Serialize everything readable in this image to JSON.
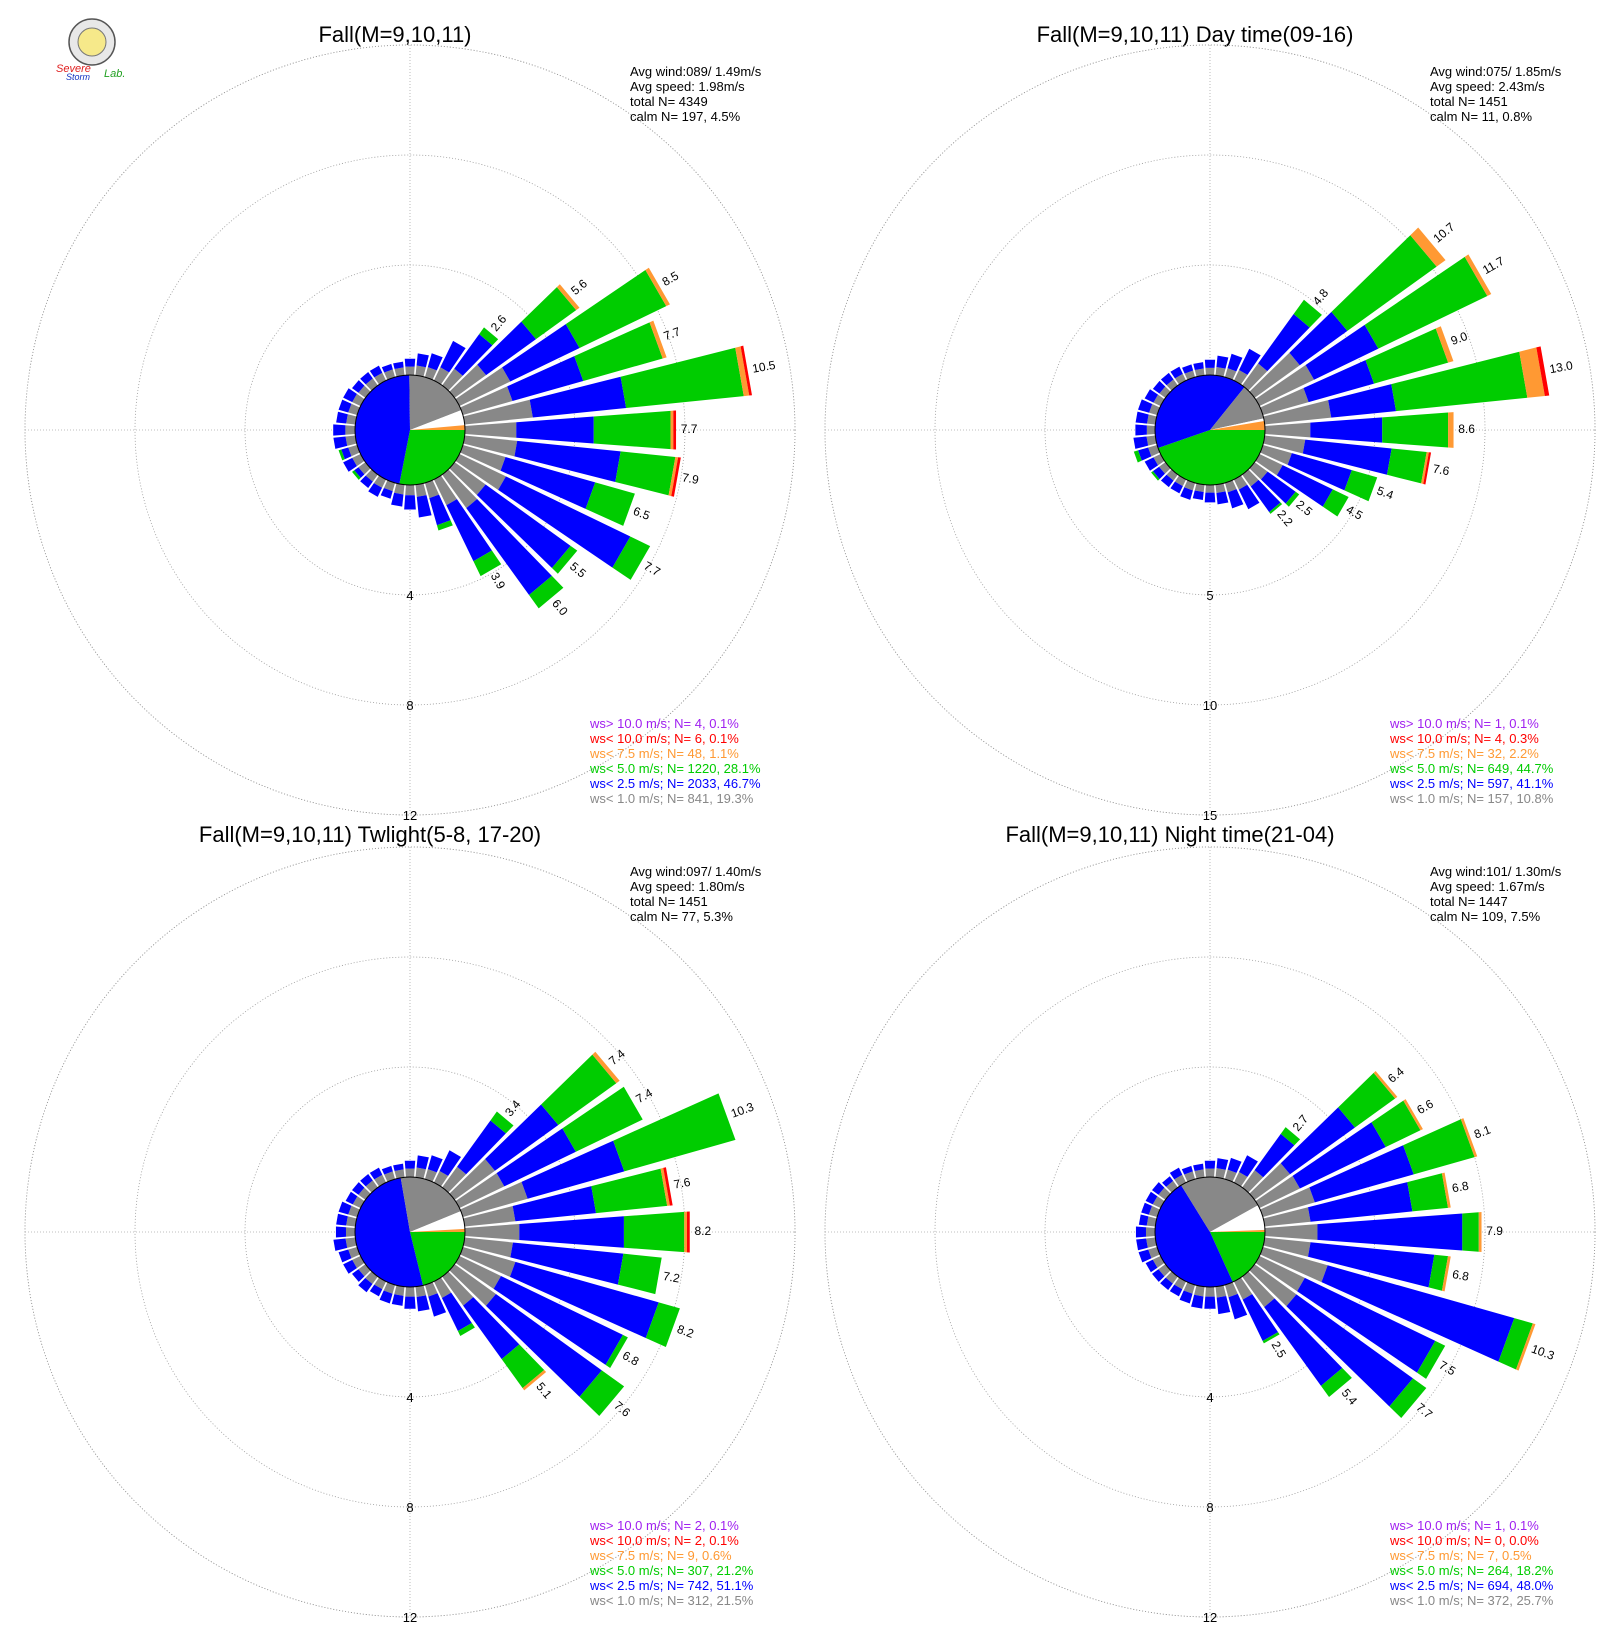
{
  "logo": {
    "text1": "Severe",
    "text2": "Storm",
    "text3": "Lab."
  },
  "colors": {
    "gt10": "#a020f0",
    "lt10": "#ff0000",
    "lt7_5": "#ff9933",
    "lt5": "#00cc00",
    "lt2_5": "#0000ff",
    "lt1": "#888888",
    "calm": "#ffffff"
  },
  "chart_data": [
    {
      "type": "polar-bar",
      "title": "Fall(M=9,10,11)",
      "stats": [
        "Avg wind:089/ 1.49m/s",
        "Avg speed: 1.98m/s",
        "total N=      4349",
        "calm N=    197,   4.5%"
      ],
      "ring_labels": [
        "4",
        "8",
        "12"
      ],
      "rmax": 12,
      "center_pie": {
        "blue": 46.7,
        "green": 28.1,
        "gray": 19.3,
        "calm": 4.5,
        "other": 1.4
      },
      "rose": [
        {
          "dir": 0,
          "total": 0.6
        },
        {
          "dir": 10,
          "total": 0.8
        },
        {
          "dir": 20,
          "total": 0.9
        },
        {
          "dir": 30,
          "total": 1.6
        },
        {
          "dir": 40,
          "total": 2.6,
          "label": "2.6",
          "g": 0.3
        },
        {
          "dir": 50,
          "total": 5.6,
          "label": "5.6",
          "g": 1.8,
          "o": 0.15
        },
        {
          "dir": 60,
          "total": 8.5,
          "label": "8.5",
          "g": 3.5,
          "o": 0.15
        },
        {
          "dir": 70,
          "total": 7.7,
          "label": "7.7",
          "g": 3.0,
          "o": 0.15
        },
        {
          "dir": 80,
          "total": 10.5,
          "label": "10.5",
          "g": 4.3,
          "o": 0.2,
          "r": 0.1
        },
        {
          "dir": 90,
          "total": 7.7,
          "label": "7.7",
          "g": 2.8,
          "o": 0.1,
          "r": 0.1
        },
        {
          "dir": 100,
          "total": 7.9,
          "label": "7.9",
          "g": 2.0,
          "o": 0.1,
          "r": 0.1
        },
        {
          "dir": 110,
          "total": 6.5,
          "label": "6.5",
          "g": 1.5
        },
        {
          "dir": 120,
          "total": 7.7,
          "label": "7.7",
          "g": 0.8
        },
        {
          "dir": 130,
          "total": 5.5,
          "label": "5.5",
          "g": 0.3
        },
        {
          "dir": 140,
          "total": 6.0,
          "label": "6.0",
          "g": 0.6
        },
        {
          "dir": 150,
          "total": 3.9,
          "label": "3.9",
          "g": 0.6
        },
        {
          "dir": 160,
          "total": 1.8,
          "g": 0.2
        },
        {
          "dir": 170,
          "total": 1.2
        },
        {
          "dir": 180,
          "total": 0.9
        },
        {
          "dir": 190,
          "total": 0.8
        },
        {
          "dir": 200,
          "total": 0.6
        },
        {
          "dir": 210,
          "total": 0.7
        },
        {
          "dir": 220,
          "total": 0.6
        },
        {
          "dir": 230,
          "total": 0.6,
          "g": 0.1
        },
        {
          "dir": 240,
          "total": 0.7
        },
        {
          "dir": 250,
          "total": 0.7,
          "g": 0.1
        },
        {
          "dir": 260,
          "total": 0.8
        },
        {
          "dir": 270,
          "total": 0.8
        },
        {
          "dir": 280,
          "total": 0.7
        },
        {
          "dir": 290,
          "total": 0.7
        },
        {
          "dir": 300,
          "total": 0.7
        },
        {
          "dir": 310,
          "total": 0.6
        },
        {
          "dir": 320,
          "total": 0.6
        },
        {
          "dir": 330,
          "total": 0.6
        },
        {
          "dir": 340,
          "total": 0.5
        },
        {
          "dir": 350,
          "total": 0.5
        }
      ],
      "legend": [
        {
          "text": "ws> 10.0 m/s; N=     4,  0.1%",
          "color": "#a020f0"
        },
        {
          "text": "ws< 10.0 m/s; N=     6,  0.1%",
          "color": "#ff0000"
        },
        {
          "text": "ws<  7.5 m/s; N=    48,  1.1%",
          "color": "#ff9933"
        },
        {
          "text": "ws<  5.0 m/s; N=  1220, 28.1%",
          "color": "#00cc00"
        },
        {
          "text": "ws<  2.5 m/s; N=  2033, 46.7%",
          "color": "#0000ff"
        },
        {
          "text": "ws<  1.0 m/s; N=   841, 19.3%",
          "color": "#888888"
        }
      ]
    },
    {
      "type": "polar-bar",
      "title": "Fall(M=9,10,11) Day time(09-16)",
      "stats": [
        "Avg wind:075/ 1.85m/s",
        "Avg speed: 2.43m/s",
        "total N=      1451",
        "calm N=     11,   0.8%"
      ],
      "ring_labels": [
        "5",
        "10",
        "15"
      ],
      "rmax": 15,
      "center_pie": {
        "blue": 41.1,
        "green": 44.7,
        "gray": 10.8,
        "calm": 0.8,
        "other": 2.6
      },
      "rose": [
        {
          "dir": 0,
          "total": 0.7
        },
        {
          "dir": 10,
          "total": 0.9
        },
        {
          "dir": 20,
          "total": 1.1
        },
        {
          "dir": 30,
          "total": 1.6
        },
        {
          "dir": 40,
          "total": 4.8,
          "label": "4.8",
          "g": 0.8
        },
        {
          "dir": 50,
          "total": 10.7,
          "label": "10.7",
          "g": 5.0,
          "o": 0.5
        },
        {
          "dir": 60,
          "total": 11.7,
          "label": "11.7",
          "g": 5.5,
          "o": 0.2
        },
        {
          "dir": 70,
          "total": 9.0,
          "label": "9.0",
          "g": 3.5,
          "o": 0.25
        },
        {
          "dir": 80,
          "total": 13.0,
          "label": "13.0",
          "g": 6.0,
          "o": 0.8,
          "r": 0.2
        },
        {
          "dir": 90,
          "total": 8.6,
          "label": "8.6",
          "g": 3.0,
          "o": 0.25
        },
        {
          "dir": 100,
          "total": 7.6,
          "label": "7.6",
          "g": 1.6,
          "o": 0.1,
          "r": 0.1
        },
        {
          "dir": 110,
          "total": 5.4,
          "label": "5.4",
          "g": 1.2
        },
        {
          "dir": 120,
          "total": 4.5,
          "label": "4.5",
          "g": 0.8
        },
        {
          "dir": 130,
          "total": 2.5,
          "label": "2.5",
          "g": 0.2
        },
        {
          "dir": 140,
          "total": 2.2,
          "label": "2.2",
          "g": 0.1
        },
        {
          "dir": 150,
          "total": 1.5
        },
        {
          "dir": 160,
          "total": 1.2
        },
        {
          "dir": 170,
          "total": 0.9
        },
        {
          "dir": 180,
          "total": 0.8
        },
        {
          "dir": 190,
          "total": 0.7
        },
        {
          "dir": 200,
          "total": 0.8
        },
        {
          "dir": 210,
          "total": 0.7
        },
        {
          "dir": 220,
          "total": 0.7
        },
        {
          "dir": 230,
          "total": 0.8,
          "g": 0.1
        },
        {
          "dir": 240,
          "total": 0.8
        },
        {
          "dir": 250,
          "total": 1.1,
          "g": 0.2
        },
        {
          "dir": 260,
          "total": 1.0
        },
        {
          "dir": 270,
          "total": 0.9
        },
        {
          "dir": 280,
          "total": 0.9
        },
        {
          "dir": 290,
          "total": 0.9
        },
        {
          "dir": 300,
          "total": 0.8
        },
        {
          "dir": 310,
          "total": 0.7
        },
        {
          "dir": 320,
          "total": 0.7
        },
        {
          "dir": 330,
          "total": 0.7
        },
        {
          "dir": 340,
          "total": 0.6
        },
        {
          "dir": 350,
          "total": 0.6
        }
      ],
      "legend": [
        {
          "text": "ws> 10.0 m/s; N=     1,  0.1%",
          "color": "#a020f0"
        },
        {
          "text": "ws< 10.0 m/s; N=     4,  0.3%",
          "color": "#ff0000"
        },
        {
          "text": "ws<  7.5 m/s; N=    32,  2.2%",
          "color": "#ff9933"
        },
        {
          "text": "ws<  5.0 m/s; N=   649, 44.7%",
          "color": "#00cc00"
        },
        {
          "text": "ws<  2.5 m/s; N=   597, 41.1%",
          "color": "#0000ff"
        },
        {
          "text": "ws<  1.0 m/s; N=   157, 10.8%",
          "color": "#888888"
        }
      ]
    },
    {
      "type": "polar-bar",
      "title": "Fall(M=9,10,11) Twlight(5-8, 17-20)",
      "stats": [
        "Avg wind:097/ 1.40m/s",
        "Avg speed: 1.80m/s",
        "total N=      1451",
        "calm N=     77,   5.3%"
      ],
      "ring_labels": [
        "4",
        "8",
        "12"
      ],
      "rmax": 12,
      "center_pie": {
        "blue": 51.1,
        "green": 21.2,
        "gray": 21.5,
        "calm": 5.3,
        "other": 0.9
      },
      "rose": [
        {
          "dir": 0,
          "total": 0.6
        },
        {
          "dir": 10,
          "total": 0.8
        },
        {
          "dir": 20,
          "total": 0.9
        },
        {
          "dir": 30,
          "total": 1.3
        },
        {
          "dir": 40,
          "total": 3.4,
          "label": "3.4",
          "g": 0.4
        },
        {
          "dir": 50,
          "total": 7.4,
          "label": "7.4",
          "g": 2.6,
          "o": 0.15
        },
        {
          "dir": 60,
          "total": 7.4,
          "label": "7.4",
          "g": 2.7
        },
        {
          "dir": 70,
          "total": 10.3,
          "label": "10.3",
          "g": 4.2
        },
        {
          "dir": 80,
          "total": 7.6,
          "label": "7.6",
          "g": 2.6,
          "o": 0.1,
          "r": 0.1
        },
        {
          "dir": 90,
          "total": 8.2,
          "label": "8.2",
          "g": 2.2,
          "o": 0.1,
          "r": 0.1
        },
        {
          "dir": 100,
          "total": 7.2,
          "label": "7.2",
          "g": 1.4
        },
        {
          "dir": 110,
          "total": 8.2,
          "label": "8.2",
          "g": 0.8
        },
        {
          "dir": 120,
          "total": 6.8,
          "label": "6.8",
          "g": 0.2
        },
        {
          "dir": 130,
          "total": 7.6,
          "label": "7.6",
          "g": 1.0
        },
        {
          "dir": 140,
          "total": 5.1,
          "label": "5.1",
          "g": 1.3,
          "o": 0.1
        },
        {
          "dir": 150,
          "total": 2.2,
          "g": 0.2
        },
        {
          "dir": 160,
          "total": 1.2
        },
        {
          "dir": 170,
          "total": 0.9
        },
        {
          "dir": 180,
          "total": 0.8
        },
        {
          "dir": 190,
          "total": 0.7
        },
        {
          "dir": 200,
          "total": 0.7
        },
        {
          "dir": 210,
          "total": 0.6
        },
        {
          "dir": 220,
          "total": 0.7
        },
        {
          "dir": 230,
          "total": 0.6
        },
        {
          "dir": 240,
          "total": 0.7
        },
        {
          "dir": 250,
          "total": 0.7
        },
        {
          "dir": 260,
          "total": 0.8
        },
        {
          "dir": 270,
          "total": 0.7
        },
        {
          "dir": 280,
          "total": 0.7
        },
        {
          "dir": 290,
          "total": 0.7
        },
        {
          "dir": 300,
          "total": 0.6
        },
        {
          "dir": 310,
          "total": 0.6
        },
        {
          "dir": 320,
          "total": 0.6
        },
        {
          "dir": 330,
          "total": 0.6
        },
        {
          "dir": 340,
          "total": 0.5
        },
        {
          "dir": 350,
          "total": 0.5
        }
      ],
      "legend": [
        {
          "text": "ws> 10.0 m/s; N=     2,  0.1%",
          "color": "#a020f0"
        },
        {
          "text": "ws< 10.0 m/s; N=     2,  0.1%",
          "color": "#ff0000"
        },
        {
          "text": "ws<  7.5 m/s; N=     9,  0.6%",
          "color": "#ff9933"
        },
        {
          "text": "ws<  5.0 m/s; N=   307, 21.2%",
          "color": "#00cc00"
        },
        {
          "text": "ws<  2.5 m/s; N=   742, 51.1%",
          "color": "#0000ff"
        },
        {
          "text": "ws<  1.0 m/s; N=   312, 21.5%",
          "color": "#888888"
        }
      ]
    },
    {
      "type": "polar-bar",
      "title": "Fall(M=9,10,11) Night time(21-04)",
      "stats": [
        "Avg wind:101/ 1.30m/s",
        "Avg speed: 1.67m/s",
        "total N=      1447",
        "calm N=    109,   7.5%"
      ],
      "ring_labels": [
        "4",
        "8",
        "12"
      ],
      "rmax": 12,
      "center_pie": {
        "blue": 48.0,
        "green": 18.2,
        "gray": 25.7,
        "calm": 7.5,
        "other": 0.6
      },
      "rose": [
        {
          "dir": 0,
          "total": 0.6
        },
        {
          "dir": 10,
          "total": 0.7
        },
        {
          "dir": 20,
          "total": 0.8
        },
        {
          "dir": 30,
          "total": 1.1
        },
        {
          "dir": 40,
          "total": 2.7,
          "label": "2.7",
          "g": 0.3
        },
        {
          "dir": 50,
          "total": 6.4,
          "label": "6.4",
          "g": 1.8,
          "o": 0.1
        },
        {
          "dir": 60,
          "total": 6.6,
          "label": "6.6",
          "g": 1.4,
          "o": 0.1
        },
        {
          "dir": 70,
          "total": 8.1,
          "label": "8.1",
          "g": 2.3,
          "o": 0.1
        },
        {
          "dir": 80,
          "total": 6.8,
          "label": "6.8",
          "g": 1.3,
          "o": 0.1
        },
        {
          "dir": 90,
          "total": 7.9,
          "label": "7.9",
          "g": 0.6,
          "o": 0.1
        },
        {
          "dir": 100,
          "total": 6.8,
          "label": "6.8",
          "g": 0.5,
          "o": 0.1
        },
        {
          "dir": 110,
          "total": 10.3,
          "label": "10.3",
          "g": 0.7,
          "o": 0.1
        },
        {
          "dir": 120,
          "total": 7.5,
          "label": "7.5",
          "g": 0.4
        },
        {
          "dir": 130,
          "total": 7.7,
          "label": "7.7",
          "g": 0.6
        },
        {
          "dir": 140,
          "total": 5.4,
          "label": "5.4",
          "g": 0.5
        },
        {
          "dir": 150,
          "total": 2.5,
          "label": "2.5",
          "g": 0.1
        },
        {
          "dir": 160,
          "total": 1.3
        },
        {
          "dir": 170,
          "total": 1.0
        },
        {
          "dir": 180,
          "total": 0.8
        },
        {
          "dir": 190,
          "total": 0.8
        },
        {
          "dir": 200,
          "total": 0.7
        },
        {
          "dir": 210,
          "total": 0.6
        },
        {
          "dir": 220,
          "total": 0.6
        },
        {
          "dir": 230,
          "total": 0.6
        },
        {
          "dir": 240,
          "total": 0.6
        },
        {
          "dir": 250,
          "total": 0.7
        },
        {
          "dir": 260,
          "total": 0.7
        },
        {
          "dir": 270,
          "total": 0.7
        },
        {
          "dir": 280,
          "total": 0.6
        },
        {
          "dir": 290,
          "total": 0.6
        },
        {
          "dir": 300,
          "total": 0.6
        },
        {
          "dir": 310,
          "total": 0.6
        },
        {
          "dir": 320,
          "total": 0.5
        },
        {
          "dir": 330,
          "total": 0.6
        },
        {
          "dir": 340,
          "total": 0.5
        },
        {
          "dir": 350,
          "total": 0.5
        }
      ],
      "legend": [
        {
          "text": "ws> 10.0 m/s; N=     1,  0.1%",
          "color": "#a020f0"
        },
        {
          "text": "ws< 10.0 m/s; N=     0,  0.0%",
          "color": "#ff0000"
        },
        {
          "text": "ws<  7.5 m/s; N=     7,  0.5%",
          "color": "#ff9933"
        },
        {
          "text": "ws<  5.0 m/s; N=   264, 18.2%",
          "color": "#00cc00"
        },
        {
          "text": "ws<  2.5 m/s; N=   694, 48.0%",
          "color": "#0000ff"
        },
        {
          "text": "ws<  1.0 m/s; N=   372, 25.7%",
          "color": "#888888"
        }
      ]
    }
  ]
}
